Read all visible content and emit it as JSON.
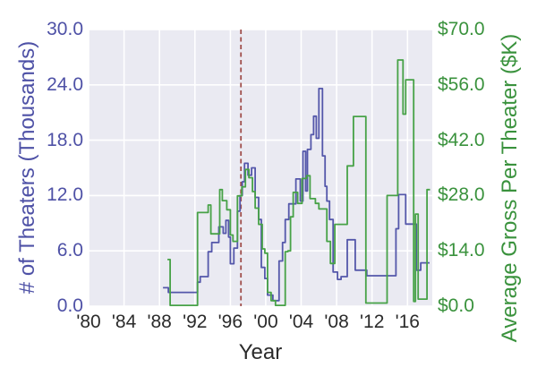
{
  "chart_data": {
    "type": "line",
    "step_style": "post",
    "title": "",
    "xlabel": "Year",
    "plot_bg": "#eaeaf2",
    "grid_color": "#ffffff",
    "xlim": [
      1980,
      2018.8
    ],
    "x_ticks": {
      "values": [
        1980,
        1984,
        1988,
        1992,
        1996,
        2000,
        2004,
        2008,
        2012,
        2016
      ],
      "labels": [
        "'80",
        "'84",
        "'88",
        "'92",
        "'96",
        "'00",
        "'04",
        "'08",
        "'12",
        "'16"
      ],
      "color": "#2b2b2b"
    },
    "left_axis": {
      "label": "# of Theaters (Thousands)",
      "ylim": [
        0,
        30
      ],
      "tick_values": [
        0,
        6,
        12,
        18,
        24,
        30
      ],
      "tick_labels": [
        "0.0",
        "6.0",
        "12.0",
        "18.0",
        "24.0",
        "30.0"
      ],
      "color": "#4e51a6"
    },
    "right_axis": {
      "label": "Average Gross Per Theater ($K)",
      "ylim": [
        0,
        70
      ],
      "tick_values": [
        0,
        14,
        28,
        42,
        56,
        70
      ],
      "tick_labels": [
        "$0.0",
        "$14.0",
        "$28.0",
        "$42.0",
        "$56.0",
        "$70.0"
      ],
      "color": "#3a923d"
    },
    "vline": {
      "x": 1997.2,
      "color": "#a04f4c",
      "dash": [
        5,
        3.5
      ],
      "width": 1.8
    },
    "series": [
      {
        "name": "theaters-thousands",
        "axis": "left",
        "color": "#5457aa",
        "width": 1.8,
        "points": [
          [
            1988.4,
            2.0
          ],
          [
            1989.0,
            1.5
          ],
          [
            1992.3,
            2.6
          ],
          [
            1992.6,
            3.2
          ],
          [
            1993.5,
            5.9
          ],
          [
            1993.9,
            6.9
          ],
          [
            1994.7,
            8.6
          ],
          [
            1995.2,
            7.9
          ],
          [
            1995.5,
            9.3
          ],
          [
            1995.8,
            7.5
          ],
          [
            1996.0,
            4.6
          ],
          [
            1996.4,
            6.3
          ],
          [
            1996.8,
            10.3
          ],
          [
            1997.1,
            12.0
          ],
          [
            1997.35,
            13.5
          ],
          [
            1997.6,
            15.5
          ],
          [
            1998.0,
            14.2
          ],
          [
            1998.4,
            15.0
          ],
          [
            1998.8,
            11.8
          ],
          [
            1999.2,
            9.4
          ],
          [
            1999.5,
            4.2
          ],
          [
            1999.9,
            3.0
          ],
          [
            2000.2,
            1.2
          ],
          [
            2000.8,
            0.6
          ],
          [
            2001.5,
            4.9
          ],
          [
            2001.9,
            6.9
          ],
          [
            2002.2,
            9.4
          ],
          [
            2002.6,
            11.1
          ],
          [
            2003.4,
            13.8
          ],
          [
            2003.9,
            11.4
          ],
          [
            2004.2,
            16.8
          ],
          [
            2004.5,
            12.5
          ],
          [
            2004.7,
            17.0
          ],
          [
            2005.1,
            18.6
          ],
          [
            2005.4,
            20.6
          ],
          [
            2005.7,
            18.2
          ],
          [
            2006.0,
            23.6
          ],
          [
            2006.4,
            16.3
          ],
          [
            2006.7,
            13.0
          ],
          [
            2006.9,
            11.4
          ],
          [
            2007.2,
            9.4
          ],
          [
            2007.6,
            3.7
          ],
          [
            2008.1,
            2.9
          ],
          [
            2008.5,
            3.2
          ],
          [
            2009.2,
            7.2
          ],
          [
            2010.1,
            3.9
          ],
          [
            2011.4,
            3.3
          ],
          [
            2014.7,
            8.4
          ],
          [
            2015.0,
            12.1
          ],
          [
            2015.8,
            8.9
          ],
          [
            2017.0,
            3.9
          ],
          [
            2017.5,
            4.7
          ],
          [
            2018.5,
            4.7
          ]
        ]
      },
      {
        "name": "avg-gross-per-theater-k",
        "axis": "right",
        "color": "#47a247",
        "width": 1.8,
        "points": [
          [
            1988.9,
            11.8
          ],
          [
            1989.2,
            0.2
          ],
          [
            1992.3,
            23.7
          ],
          [
            1993.5,
            25.6
          ],
          [
            1993.8,
            18.3
          ],
          [
            1994.8,
            29.5
          ],
          [
            1995.1,
            26.7
          ],
          [
            1995.6,
            24.4
          ],
          [
            1996.0,
            18.0
          ],
          [
            1996.3,
            16.4
          ],
          [
            1996.8,
            27.9
          ],
          [
            1997.3,
            30.2
          ],
          [
            1997.7,
            34.6
          ],
          [
            1998.1,
            32.5
          ],
          [
            1998.5,
            29.0
          ],
          [
            1998.8,
            24.8
          ],
          [
            1999.2,
            20.7
          ],
          [
            1999.6,
            14.5
          ],
          [
            1999.9,
            13.4
          ],
          [
            2000.2,
            3.5
          ],
          [
            2000.6,
            1.4
          ],
          [
            2001.1,
            0.2
          ],
          [
            2002.2,
            13.8
          ],
          [
            2002.5,
            14.0
          ],
          [
            2002.8,
            22.6
          ],
          [
            2003.1,
            28.8
          ],
          [
            2003.6,
            26.0
          ],
          [
            2004.1,
            32.3
          ],
          [
            2004.6,
            33.0
          ],
          [
            2005.0,
            27.2
          ],
          [
            2005.6,
            26.0
          ],
          [
            2006.0,
            24.6
          ],
          [
            2006.9,
            16.4
          ],
          [
            2007.3,
            10.8
          ],
          [
            2007.8,
            20.7
          ],
          [
            2009.2,
            35.5
          ],
          [
            2009.9,
            48.0
          ],
          [
            2011.3,
            0.8
          ],
          [
            2013.7,
            28.0
          ],
          [
            2014.9,
            62.3
          ],
          [
            2015.5,
            48.6
          ],
          [
            2015.8,
            57.3
          ],
          [
            2016.7,
            1.2
          ],
          [
            2016.9,
            23.3
          ],
          [
            2017.2,
            1.8
          ],
          [
            2018.2,
            29.5
          ],
          [
            2018.55,
            29.5
          ]
        ]
      }
    ]
  }
}
